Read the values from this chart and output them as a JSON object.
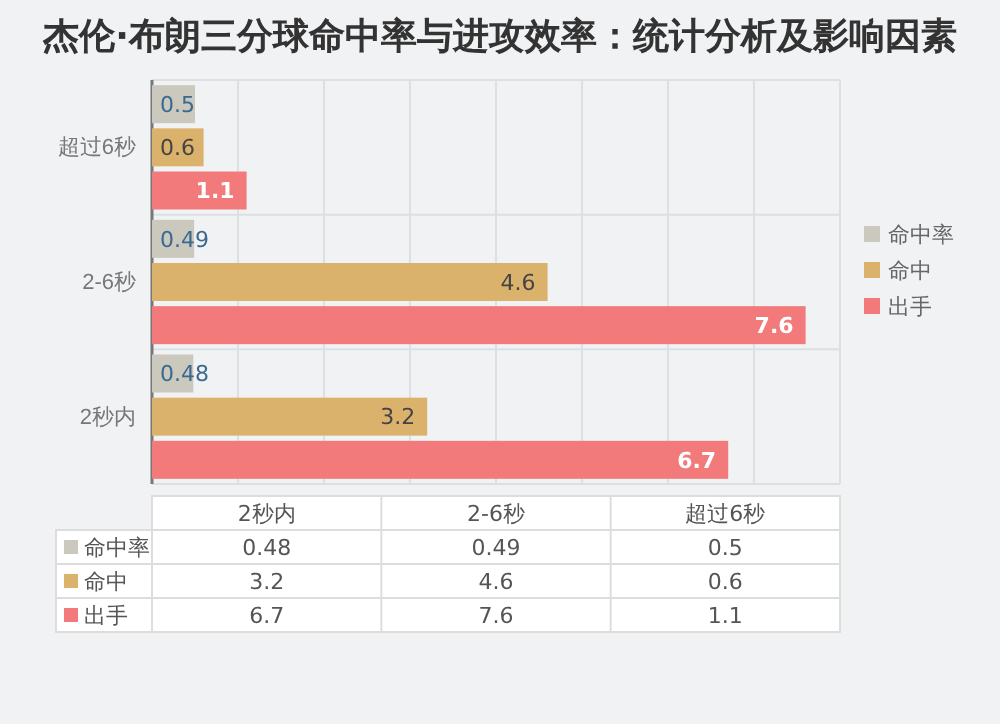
{
  "chart_data": {
    "type": "bar",
    "orientation": "horizontal",
    "title": "杰伦·布朗三分球命中率与进攻效率：统计分析及影响因素",
    "categories": [
      "超过6秒",
      "2-6秒",
      "2秒内"
    ],
    "series": [
      {
        "name": "命中率",
        "color": "#cbc8bd",
        "values": [
          0.5,
          0.49,
          0.48
        ]
      },
      {
        "name": "命中",
        "color": "#dbb26c",
        "values": [
          0.6,
          4.6,
          3.2
        ]
      },
      {
        "name": "出手",
        "color": "#f27a7a",
        "values": [
          1.1,
          7.6,
          6.7
        ]
      }
    ],
    "xlim": [
      0,
      8
    ],
    "xticks": [
      {
        "value": 0,
        "label": null
      },
      {
        "value": 1,
        "label": null
      },
      {
        "value": 2,
        "label": null
      },
      {
        "value": 3,
        "label": null
      },
      {
        "value": 4,
        "label": null
      },
      {
        "value": 5,
        "label": null
      },
      {
        "value": 6,
        "label": null
      },
      {
        "value": 7,
        "label": null
      },
      {
        "value": 8,
        "label": null
      }
    ],
    "annotations": [
      "0.48",
      "0.49",
      "0.5",
      "3.2",
      "4.6",
      "0.6",
      "6.7",
      "7.6",
      "1.1"
    ],
    "tick_labels": "y",
    "grid": true,
    "legend": "right",
    "data_labels": true
  }
}
